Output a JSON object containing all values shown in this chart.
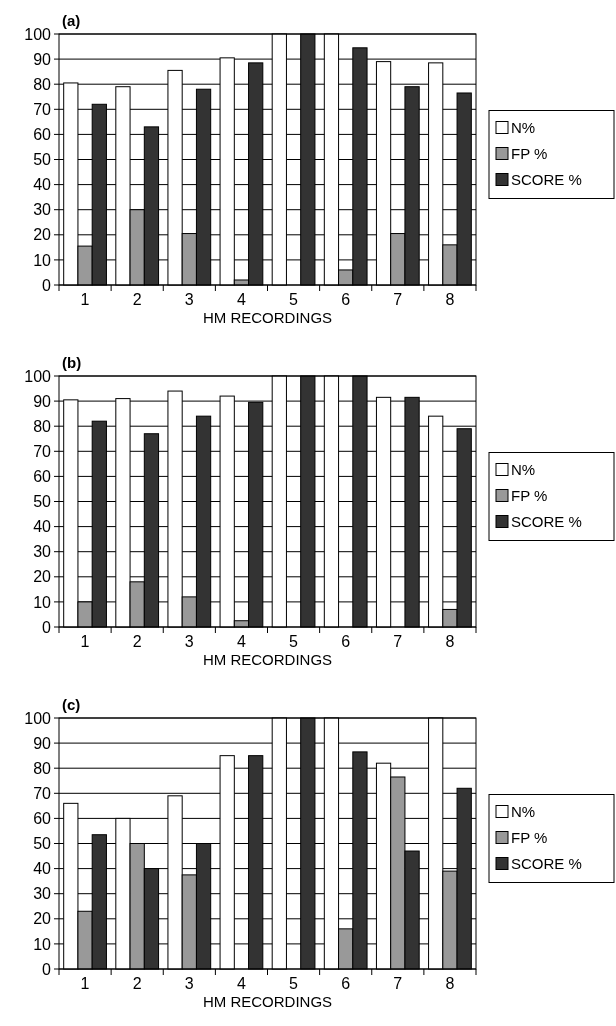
{
  "chart_data": [
    {
      "type": "bar",
      "title": "(a)",
      "xlabel": "HM RECORDINGS",
      "categories": [
        "1",
        "2",
        "3",
        "4",
        "5",
        "6",
        "7",
        "8"
      ],
      "series": [
        {
          "name": "N%",
          "color": "#ffffff",
          "values": [
            80.5,
            79,
            85.5,
            90.5,
            100,
            100,
            89,
            88.5
          ]
        },
        {
          "name": "FP %",
          "color": "#999999",
          "values": [
            15.5,
            30,
            20.5,
            2,
            0,
            6,
            20.5,
            16
          ]
        },
        {
          "name": "SCORE %",
          "color": "#333333",
          "values": [
            72,
            63,
            78,
            88.5,
            100,
            94.5,
            79,
            76.5
          ]
        }
      ],
      "ylim": [
        0,
        100
      ],
      "yticks": [
        0,
        10,
        20,
        30,
        40,
        50,
        60,
        70,
        80,
        90,
        100
      ],
      "grid": "y",
      "legend": "right"
    },
    {
      "type": "bar",
      "title": "(b)",
      "xlabel": "HM RECORDINGS",
      "categories": [
        "1",
        "2",
        "3",
        "4",
        "5",
        "6",
        "7",
        "8"
      ],
      "series": [
        {
          "name": "N%",
          "color": "#ffffff",
          "values": [
            90.5,
            91,
            94,
            92,
            100,
            100,
            91.5,
            84
          ]
        },
        {
          "name": "FP %",
          "color": "#999999",
          "values": [
            10,
            18,
            12,
            2.5,
            0,
            0,
            0,
            7
          ]
        },
        {
          "name": "SCORE %",
          "color": "#333333",
          "values": [
            82,
            77,
            84,
            89.5,
            100,
            100,
            91.5,
            79
          ]
        }
      ],
      "ylim": [
        0,
        100
      ],
      "yticks": [
        0,
        10,
        20,
        30,
        40,
        50,
        60,
        70,
        80,
        90,
        100
      ],
      "grid": "y",
      "legend": "right"
    },
    {
      "type": "bar",
      "title": "(c)",
      "xlabel": "HM RECORDINGS",
      "categories": [
        "1",
        "2",
        "3",
        "4",
        "5",
        "6",
        "7",
        "8"
      ],
      "series": [
        {
          "name": "N%",
          "color": "#ffffff",
          "values": [
            66,
            60,
            69,
            85,
            100,
            100,
            82,
            100
          ]
        },
        {
          "name": "FP %",
          "color": "#999999",
          "values": [
            23,
            50,
            37.5,
            0,
            0,
            16,
            76.5,
            39
          ]
        },
        {
          "name": "SCORE %",
          "color": "#333333",
          "values": [
            53.5,
            40,
            50,
            85,
            100,
            86.5,
            47,
            72
          ]
        }
      ],
      "ylim": [
        0,
        100
      ],
      "yticks": [
        0,
        10,
        20,
        30,
        40,
        50,
        60,
        70,
        80,
        90,
        100
      ],
      "grid": "y",
      "legend": "right"
    }
  ]
}
